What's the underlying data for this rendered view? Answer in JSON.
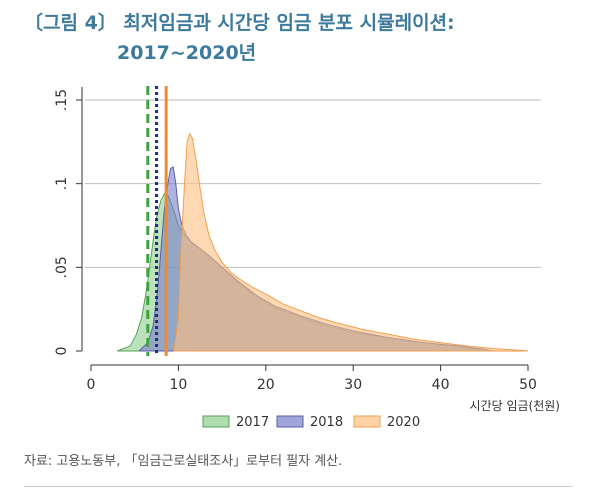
{
  "title": {
    "line1": "〔그림 4〕 최저임금과 시간당 임금 분포 시뮬레이션:",
    "line2": "2017~2020년"
  },
  "source_note": "자료: 고용노동부, 「임금근로실태조사」로부터 필자 계산.",
  "chart_data": {
    "type": "area",
    "xlabel": "시간당 임금(천원)",
    "ylabel": "",
    "xlim": [
      0,
      50
    ],
    "ylim": [
      0,
      0.15
    ],
    "x_ticks": [
      0,
      10,
      20,
      30,
      40,
      50
    ],
    "y_ticks": [
      0,
      0.05,
      0.1,
      0.15
    ],
    "x_tick_labels": [
      "0",
      "10",
      "20",
      "30",
      "40",
      "50"
    ],
    "y_tick_labels": [
      "0",
      ".05",
      ".1",
      ".15"
    ],
    "grid": true,
    "legend_position": "bottom",
    "series": [
      {
        "name": "2017",
        "color": "#8fce8f",
        "edge": "#5aa05a",
        "x": [
          3,
          4.5,
          5.2,
          5.8,
          6.3,
          6.7,
          7.1,
          7.5,
          8.0,
          8.4,
          8.8,
          9.2,
          9.6,
          10.0,
          10.6,
          11.3,
          12.3,
          13.5,
          15,
          17,
          19,
          21,
          24,
          27,
          30,
          34,
          38,
          42,
          44,
          45
        ],
        "values": [
          0,
          0.003,
          0.01,
          0.02,
          0.035,
          0.05,
          0.066,
          0.08,
          0.09,
          0.094,
          0.093,
          0.088,
          0.082,
          0.075,
          0.07,
          0.066,
          0.062,
          0.057,
          0.05,
          0.04,
          0.032,
          0.026,
          0.02,
          0.015,
          0.011,
          0.008,
          0.005,
          0.003,
          0.001,
          0
        ]
      },
      {
        "name": "2018",
        "color": "#7b7fc9",
        "edge": "#5a5fa8",
        "x": [
          5.5,
          6.5,
          7.1,
          7.6,
          8.0,
          8.4,
          8.8,
          9.1,
          9.4,
          9.7,
          10.0,
          10.4,
          10.9,
          11.5,
          12.5,
          13.5,
          15,
          17,
          19,
          21,
          24,
          27,
          30,
          34,
          38,
          42,
          45,
          46
        ],
        "values": [
          0,
          0.005,
          0.015,
          0.035,
          0.06,
          0.085,
          0.1,
          0.109,
          0.11,
          0.1,
          0.085,
          0.075,
          0.069,
          0.065,
          0.061,
          0.057,
          0.05,
          0.041,
          0.033,
          0.027,
          0.021,
          0.016,
          0.012,
          0.008,
          0.005,
          0.003,
          0.001,
          0
        ]
      },
      {
        "name": "2020",
        "color": "#ffc080",
        "edge": "#f0a050",
        "x": [
          9.5,
          10.0,
          10.3,
          10.7,
          11.0,
          11.3,
          11.6,
          12.0,
          12.4,
          12.9,
          13.5,
          14.2,
          15,
          16,
          17,
          18.5,
          20,
          22,
          24,
          26,
          28,
          31,
          34,
          37,
          40,
          43,
          46,
          49,
          50
        ],
        "values": [
          0,
          0.02,
          0.06,
          0.1,
          0.125,
          0.13,
          0.127,
          0.115,
          0.1,
          0.083,
          0.069,
          0.06,
          0.053,
          0.047,
          0.043,
          0.038,
          0.034,
          0.028,
          0.024,
          0.02,
          0.017,
          0.013,
          0.01,
          0.007,
          0.005,
          0.003,
          0.0015,
          0.0004,
          0
        ]
      }
    ],
    "reference_lines": [
      {
        "x": 6.5,
        "color": "#3aa53a",
        "style": "dash"
      },
      {
        "x": 7.5,
        "color": "#1f2f7a",
        "style": "dot"
      },
      {
        "x": 8.6,
        "color": "#f08a30",
        "style": "solid"
      }
    ]
  }
}
